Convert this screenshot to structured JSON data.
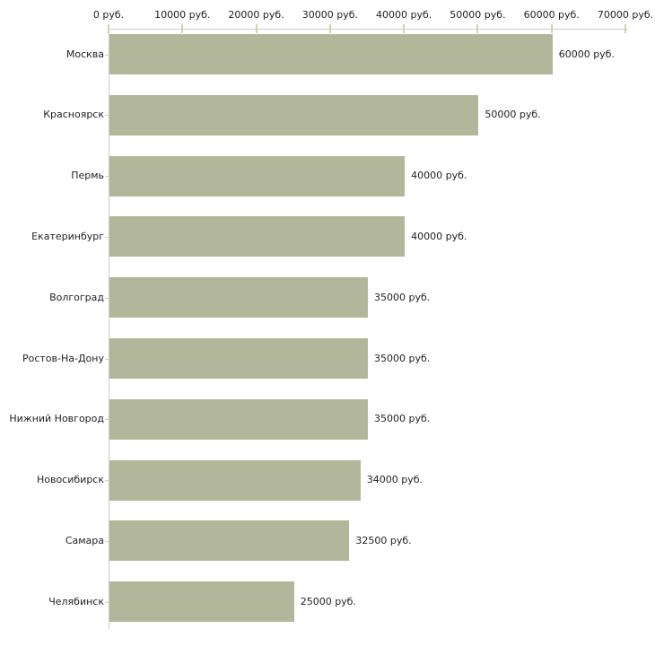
{
  "chart_data": {
    "type": "bar",
    "orientation": "horizontal",
    "title": "",
    "xlabel": "",
    "ylabel": "",
    "categories": [
      "Москва",
      "Красноярск",
      "Пермь",
      "Екатеринбург",
      "Волгоград",
      "Ростов-На-Дону",
      "Нижний Новгород",
      "Новосибирск",
      "Самара",
      "Челябинск"
    ],
    "values": [
      60000,
      50000,
      40000,
      40000,
      35000,
      35000,
      35000,
      34000,
      32500,
      25000
    ],
    "value_labels": [
      "60000 руб.",
      "50000 руб.",
      "40000 руб.",
      "40000 руб.",
      "35000 руб.",
      "35000 руб.",
      "35000 руб.",
      "34000 руб.",
      "32500 руб.",
      "25000 руб."
    ],
    "unit_suffix": " руб.",
    "x_axis": {
      "position": "top",
      "xlim": [
        0,
        70000
      ],
      "tick_values": [
        0,
        10000,
        20000,
        30000,
        40000,
        50000,
        60000,
        70000
      ],
      "tick_labels": [
        "0 руб.",
        "10000 руб.",
        "20000 руб.",
        "30000 руб.",
        "40000 руб.",
        "50000 руб.",
        "60000 руб.",
        "70000 руб."
      ]
    },
    "grid": false,
    "legend": false,
    "colors": {
      "bar": "#b2b79b",
      "axis_line": "#cccccc",
      "tick": "#d5d1a8",
      "text": "#1f1f1f",
      "background": "#ffffff"
    }
  }
}
